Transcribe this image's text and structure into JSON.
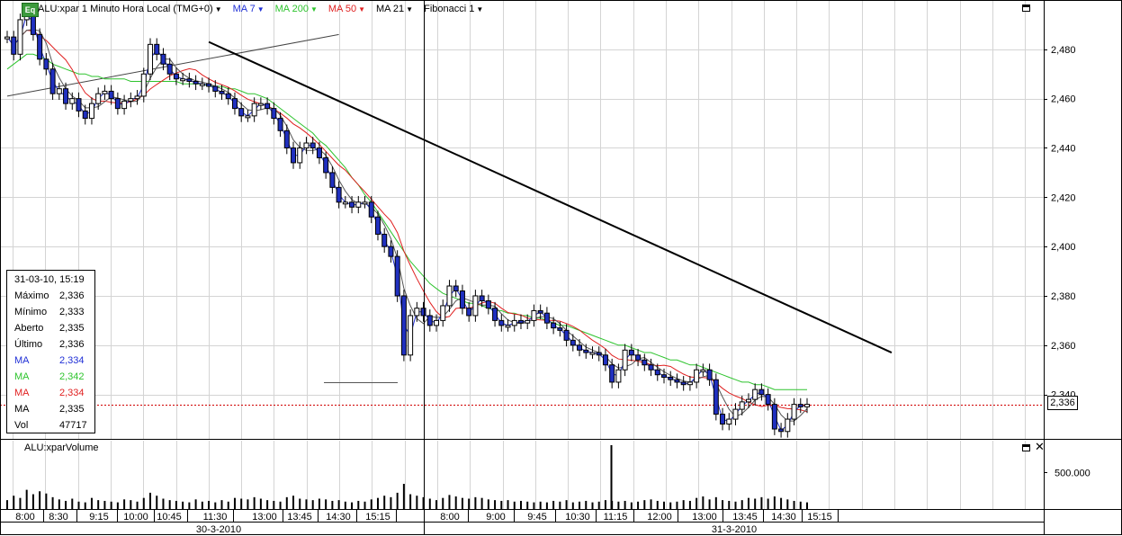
{
  "toolbar": {
    "badge": "Eq",
    "symbol": "ALU:xpar 1 Minuto Hora Local (TMG+0)",
    "indicators": [
      {
        "label": "MA 7",
        "color": "#1f2fd6"
      },
      {
        "label": "MA 200",
        "color": "#2ec42e"
      },
      {
        "label": "MA 50",
        "color": "#e02020"
      },
      {
        "label": "MA 21",
        "color": "#000000"
      },
      {
        "label": "Fibonacci 1",
        "color": "#000000"
      }
    ]
  },
  "info": {
    "date": "31-03-10, 15:19",
    "rows": [
      {
        "label": "Máximo",
        "value": "2,336",
        "color": "#000000"
      },
      {
        "label": "Mínimo",
        "value": "2,333",
        "color": "#000000"
      },
      {
        "label": "Aberto",
        "value": "2,335",
        "color": "#000000"
      },
      {
        "label": "Último",
        "value": "2,336",
        "color": "#000000"
      },
      {
        "label": "MA",
        "value": "2,334",
        "color": "#1f2fd6"
      },
      {
        "label": "MA",
        "value": "2,342",
        "color": "#2ec42e"
      },
      {
        "label": "MA",
        "value": "2,334",
        "color": "#e02020"
      },
      {
        "label": "MA",
        "value": "2,335",
        "color": "#000000"
      },
      {
        "label": "Vol",
        "value": "47717",
        "color": "#000000"
      }
    ]
  },
  "last_price_label": "2,336",
  "volume": {
    "title": "ALU:xparVolume",
    "tick_label": "500.000",
    "tick_value": 500000,
    "max_value": 900000
  },
  "chart_data": {
    "type": "line",
    "subtype": "candlestick",
    "ylim": [
      2.322,
      2.5
    ],
    "y_ticks": [
      2.34,
      2.36,
      2.38,
      2.4,
      2.42,
      2.44,
      2.46,
      2.48
    ],
    "y_tick_labels": [
      "2,340",
      "2,360",
      "2,380",
      "2,400",
      "2,420",
      "2,440",
      "2,460",
      "2,480"
    ],
    "x_tick_labels": [
      "8:00",
      "8:30",
      "9:15",
      "10:00",
      "10:45",
      "11:30",
      "13:00",
      "13:45",
      "14:30",
      "15:15",
      "8:00",
      "9:00",
      "9:45",
      "10:30",
      "11:15",
      "12:00",
      "13:00",
      "13:45",
      "14:30",
      "15:15"
    ],
    "date_labels": [
      "30-3-2010",
      "31-3-2010"
    ],
    "last_price": 2.336,
    "series": [
      {
        "name": "ALU:xpar",
        "values": [
          2.485,
          2.478,
          2.492,
          2.496,
          2.486,
          2.476,
          2.472,
          2.462,
          2.464,
          2.458,
          2.46,
          2.455,
          2.452,
          2.458,
          2.462,
          2.463,
          2.46,
          2.456,
          2.459,
          2.46,
          2.461,
          2.47,
          2.482,
          2.478,
          2.474,
          2.47,
          2.468,
          2.468,
          2.467,
          2.466,
          2.466,
          2.465,
          2.463,
          2.462,
          2.46,
          2.456,
          2.453,
          2.453,
          2.458,
          2.458,
          2.456,
          2.452,
          2.447,
          2.44,
          2.434,
          2.44,
          2.442,
          2.44,
          2.436,
          2.43,
          2.424,
          2.418,
          2.418,
          2.416,
          2.418,
          2.418,
          2.412,
          2.405,
          2.4,
          2.396,
          2.38,
          2.356,
          2.372,
          2.375,
          2.372,
          2.368,
          2.37,
          2.376,
          2.384,
          2.382,
          2.375,
          2.372,
          2.38,
          2.378,
          2.375,
          2.37,
          2.368,
          2.368,
          2.37,
          2.369,
          2.37,
          2.374,
          2.373,
          2.369,
          2.367,
          2.366,
          2.362,
          2.36,
          2.358,
          2.357,
          2.357,
          2.356,
          2.352,
          2.345,
          2.35,
          2.358,
          2.356,
          2.354,
          2.352,
          2.35,
          2.348,
          2.347,
          2.346,
          2.345,
          2.344,
          2.345,
          2.35,
          2.35,
          2.346,
          2.332,
          2.328,
          2.33,
          2.334,
          2.337,
          2.338,
          2.342,
          2.34,
          2.336,
          2.326,
          2.325,
          2.33,
          2.336,
          2.335,
          2.336
        ]
      },
      {
        "name": "MA 200",
        "values": [
          2.472,
          2.474,
          2.476,
          2.478,
          2.478,
          2.477,
          2.476,
          2.474,
          2.473,
          2.472,
          2.471,
          2.47,
          2.47,
          2.469,
          2.469,
          2.468,
          2.468,
          2.468,
          2.468,
          2.467,
          2.467,
          2.467,
          2.467,
          2.467,
          2.467,
          2.467,
          2.467,
          2.466,
          2.466,
          2.466,
          2.466,
          2.465,
          2.465,
          2.465,
          2.464,
          2.464,
          2.463,
          2.462,
          2.462,
          2.461,
          2.46,
          2.458,
          2.456,
          2.454,
          2.452,
          2.45,
          2.448,
          2.446,
          2.443,
          2.441,
          2.438,
          2.435,
          2.432,
          2.428,
          2.425,
          2.421,
          2.418,
          2.414,
          2.41,
          2.406,
          2.402,
          2.398,
          2.394,
          2.391,
          2.388,
          2.385,
          2.383,
          2.381,
          2.38,
          2.379,
          2.378,
          2.377,
          2.377,
          2.376,
          2.375,
          2.374,
          2.374,
          2.373,
          2.373,
          2.372,
          2.372,
          2.371,
          2.371,
          2.37,
          2.369,
          2.368,
          2.368,
          2.367,
          2.366,
          2.365,
          2.364,
          2.363,
          2.362,
          2.361,
          2.36,
          2.36,
          2.359,
          2.358,
          2.357,
          2.357,
          2.356,
          2.355,
          2.354,
          2.354,
          2.353,
          2.352,
          2.352,
          2.351,
          2.35,
          2.349,
          2.348,
          2.347,
          2.346,
          2.345,
          2.345,
          2.344,
          2.344,
          2.343,
          2.342,
          2.342,
          2.342,
          2.342,
          2.342,
          2.342
        ]
      }
    ],
    "trendlines": [
      {
        "x1": 0,
        "y1": 2.461,
        "x2": 51,
        "y2": 2.486
      },
      {
        "x1": 31,
        "y1": 2.483,
        "x2": 136,
        "y2": 2.357
      }
    ],
    "volume_values": [
      120000,
      180000,
      150000,
      260000,
      200000,
      240000,
      210000,
      160000,
      130000,
      110000,
      140000,
      100000,
      90000,
      150000,
      120000,
      110000,
      100000,
      90000,
      130000,
      120000,
      100000,
      150000,
      220000,
      180000,
      140000,
      120000,
      110000,
      100000,
      90000,
      130000,
      100000,
      110000,
      90000,
      120000,
      100000,
      150000,
      140000,
      130000,
      160000,
      140000,
      120000,
      110000,
      100000,
      160000,
      180000,
      140000,
      130000,
      120000,
      140000,
      130000,
      110000,
      120000,
      100000,
      90000,
      110000,
      100000,
      130000,
      150000,
      180000,
      160000,
      220000,
      340000,
      200000,
      180000,
      160000,
      140000,
      120000,
      150000,
      190000,
      170000,
      150000,
      140000,
      160000,
      150000,
      130000,
      120000,
      110000,
      120000,
      100000,
      110000,
      100000,
      90000,
      100000,
      90000,
      110000,
      100000,
      120000,
      90000,
      100000,
      110000,
      90000,
      100000,
      120000,
      110000,
      100000,
      110000,
      90000,
      100000,
      120000,
      130000,
      110000,
      100000,
      90000,
      100000,
      120000,
      110000,
      150000,
      170000,
      130000,
      160000,
      120000,
      110000,
      100000,
      120000,
      150000,
      140000,
      160000,
      140000,
      170000,
      150000,
      130000,
      110000,
      100000,
      90000
    ]
  }
}
